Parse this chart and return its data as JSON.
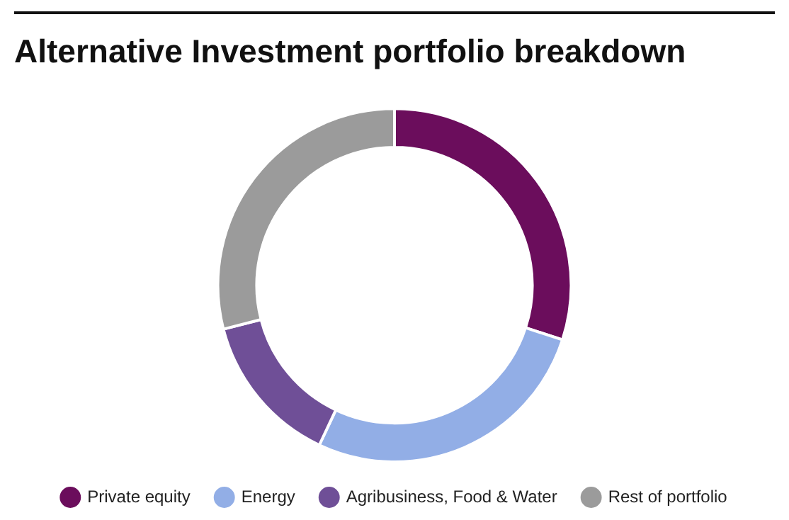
{
  "chart_data": {
    "type": "donut",
    "title": "Alternative Investment portfolio breakdown",
    "categories": [
      "Private equity",
      "Energy",
      "Agribusiness, Food & Water",
      "Rest of portfolio"
    ],
    "values": [
      30,
      27,
      14,
      29
    ],
    "colors": [
      "#6b0d5c",
      "#92aee6",
      "#6f4f97",
      "#9b9b9b"
    ],
    "legend": "bottom"
  }
}
